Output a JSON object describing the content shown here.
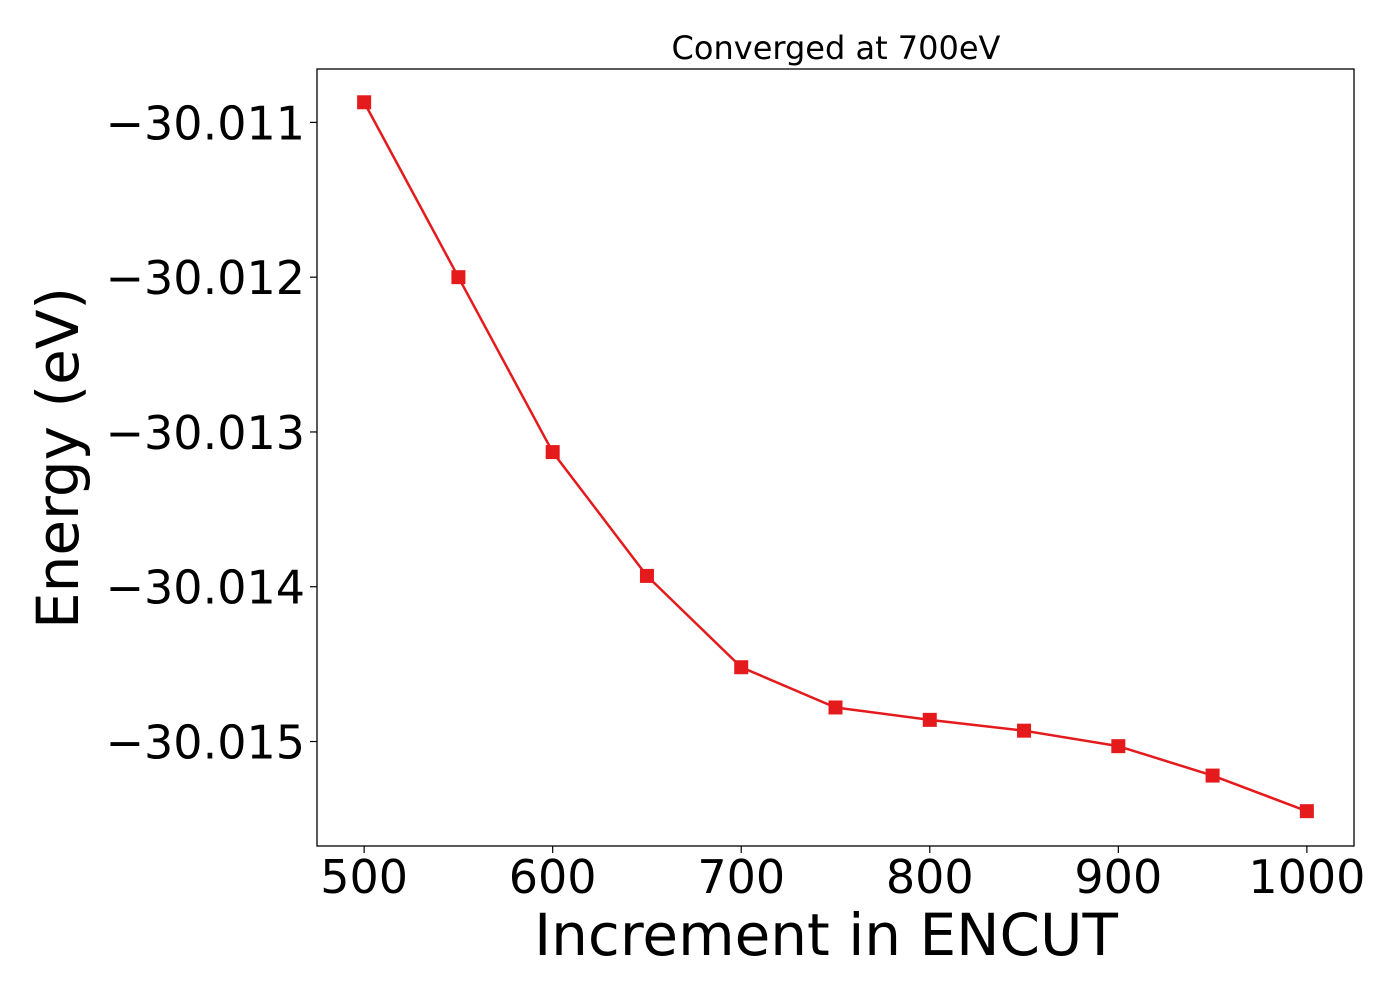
{
  "chart_data": {
    "type": "line",
    "title": "Converged at 700eV",
    "xlabel": "Increment in ENCUT",
    "ylabel": "Energy (eV)",
    "x": [
      500,
      550,
      600,
      650,
      700,
      750,
      800,
      850,
      900,
      950,
      1000
    ],
    "series": [
      {
        "values": [
          -30.01087,
          -30.012,
          -30.01313,
          -30.01393,
          -30.01452,
          -30.01478,
          -30.01486,
          -30.01493,
          -30.01503,
          -30.01522,
          -30.01545
        ],
        "color": "#e41a1c",
        "marker": "square"
      }
    ],
    "xlim": [
      475,
      1025
    ],
    "ylim": [
      -30.015675,
      -30.010655
    ],
    "xticks": [
      500,
      600,
      700,
      800,
      900,
      1000
    ],
    "xtick_labels": [
      "500",
      "600",
      "700",
      "800",
      "900",
      "1000"
    ],
    "yticks": [
      -30.011,
      -30.012,
      -30.013,
      -30.014,
      -30.015
    ],
    "ytick_labels": [
      "−30.011",
      "−30.012",
      "−30.013",
      "−30.014",
      "−30.015"
    ],
    "grid": false,
    "legend": false
  }
}
